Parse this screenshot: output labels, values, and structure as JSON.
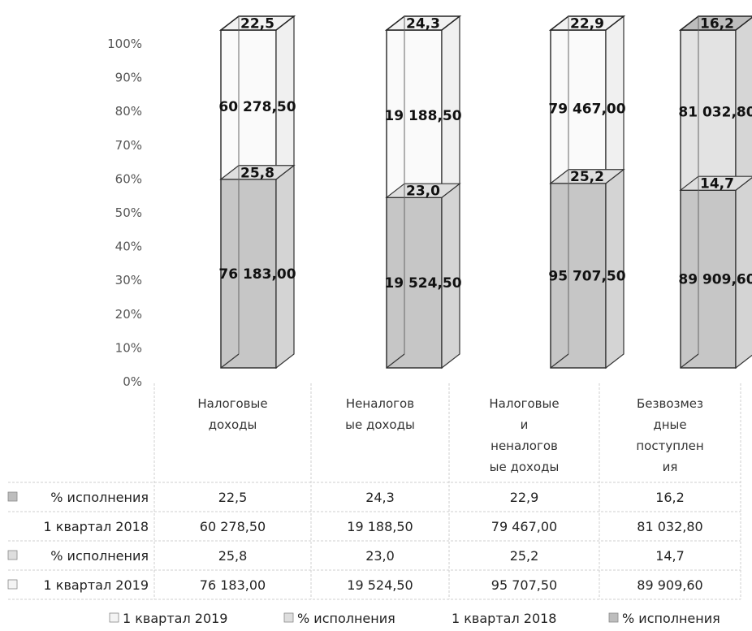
{
  "chart_data": {
    "type": "bar",
    "stacked": "percent",
    "view": "3d",
    "y_ticks": [
      "0%",
      "10%",
      "20%",
      "30%",
      "40%",
      "50%",
      "60%",
      "70%",
      "80%",
      "90%",
      "100%"
    ],
    "ylim": [
      0,
      100
    ],
    "categories": [
      [
        "Налоговые",
        "доходы"
      ],
      [
        "Неналогов",
        "ые доходы"
      ],
      [
        "Налоговые",
        "и",
        "неналогов",
        "ые доходы"
      ],
      [
        "Безвозмез",
        "дные",
        "поступлен",
        "ия"
      ]
    ],
    "series": [
      {
        "name": "1 квартал 2019",
        "values": [
          76183.0,
          19524.5,
          95707.5,
          89909.6
        ],
        "labels": [
          "76 183,00",
          "19 524,50",
          "95 707,50",
          "89 909,60"
        ],
        "color": "#c6c6c6"
      },
      {
        "name": "% исполнения",
        "values": [
          25.8,
          23.0,
          25.2,
          14.7
        ],
        "labels": [
          "25,8",
          "23,0",
          "25,2",
          "14,7"
        ],
        "color": "#dedede"
      },
      {
        "name": "1 квартал 2018",
        "values": [
          60278.5,
          19188.5,
          79467.0,
          81032.8
        ],
        "labels": [
          "60 278,50",
          "19 188,50",
          "79 467,00",
          "81 032,80"
        ],
        "color": "#ffffff"
      },
      {
        "name": "% исполнения",
        "values": [
          22.5,
          24.3,
          22.9,
          16.2
        ],
        "labels": [
          "22,5",
          "24,3",
          "22,9",
          "16,2"
        ],
        "color": "#bdbdbd"
      }
    ],
    "table_rows": [
      {
        "label": "% исполнения",
        "values": [
          "22,5",
          "24,3",
          "22,9",
          "16,2"
        ],
        "swatch": "#bdbdbd"
      },
      {
        "label": "1 квартал 2018",
        "values": [
          "60 278,50",
          "19 188,50",
          "79 467,00",
          "81 032,80"
        ],
        "swatch": ""
      },
      {
        "label": "% исполнения",
        "values": [
          "25,8",
          "23,0",
          "25,2",
          "14,7"
        ],
        "swatch": "#dedede"
      },
      {
        "label": "1 квартал 2019",
        "values": [
          "76 183,00",
          "19 524,50",
          "95 707,50",
          "89 909,60"
        ],
        "swatch": "#f4f4f4"
      }
    ],
    "legend": [
      {
        "label": "1 квартал 2019",
        "swatch": "#f4f4f4"
      },
      {
        "label": "% исполнения",
        "swatch": "#dedede"
      },
      {
        "label": "1 квартал 2018",
        "swatch": ""
      },
      {
        "label": "% исполнения",
        "swatch": "#bdbdbd"
      }
    ],
    "legend_position": "bottom"
  }
}
